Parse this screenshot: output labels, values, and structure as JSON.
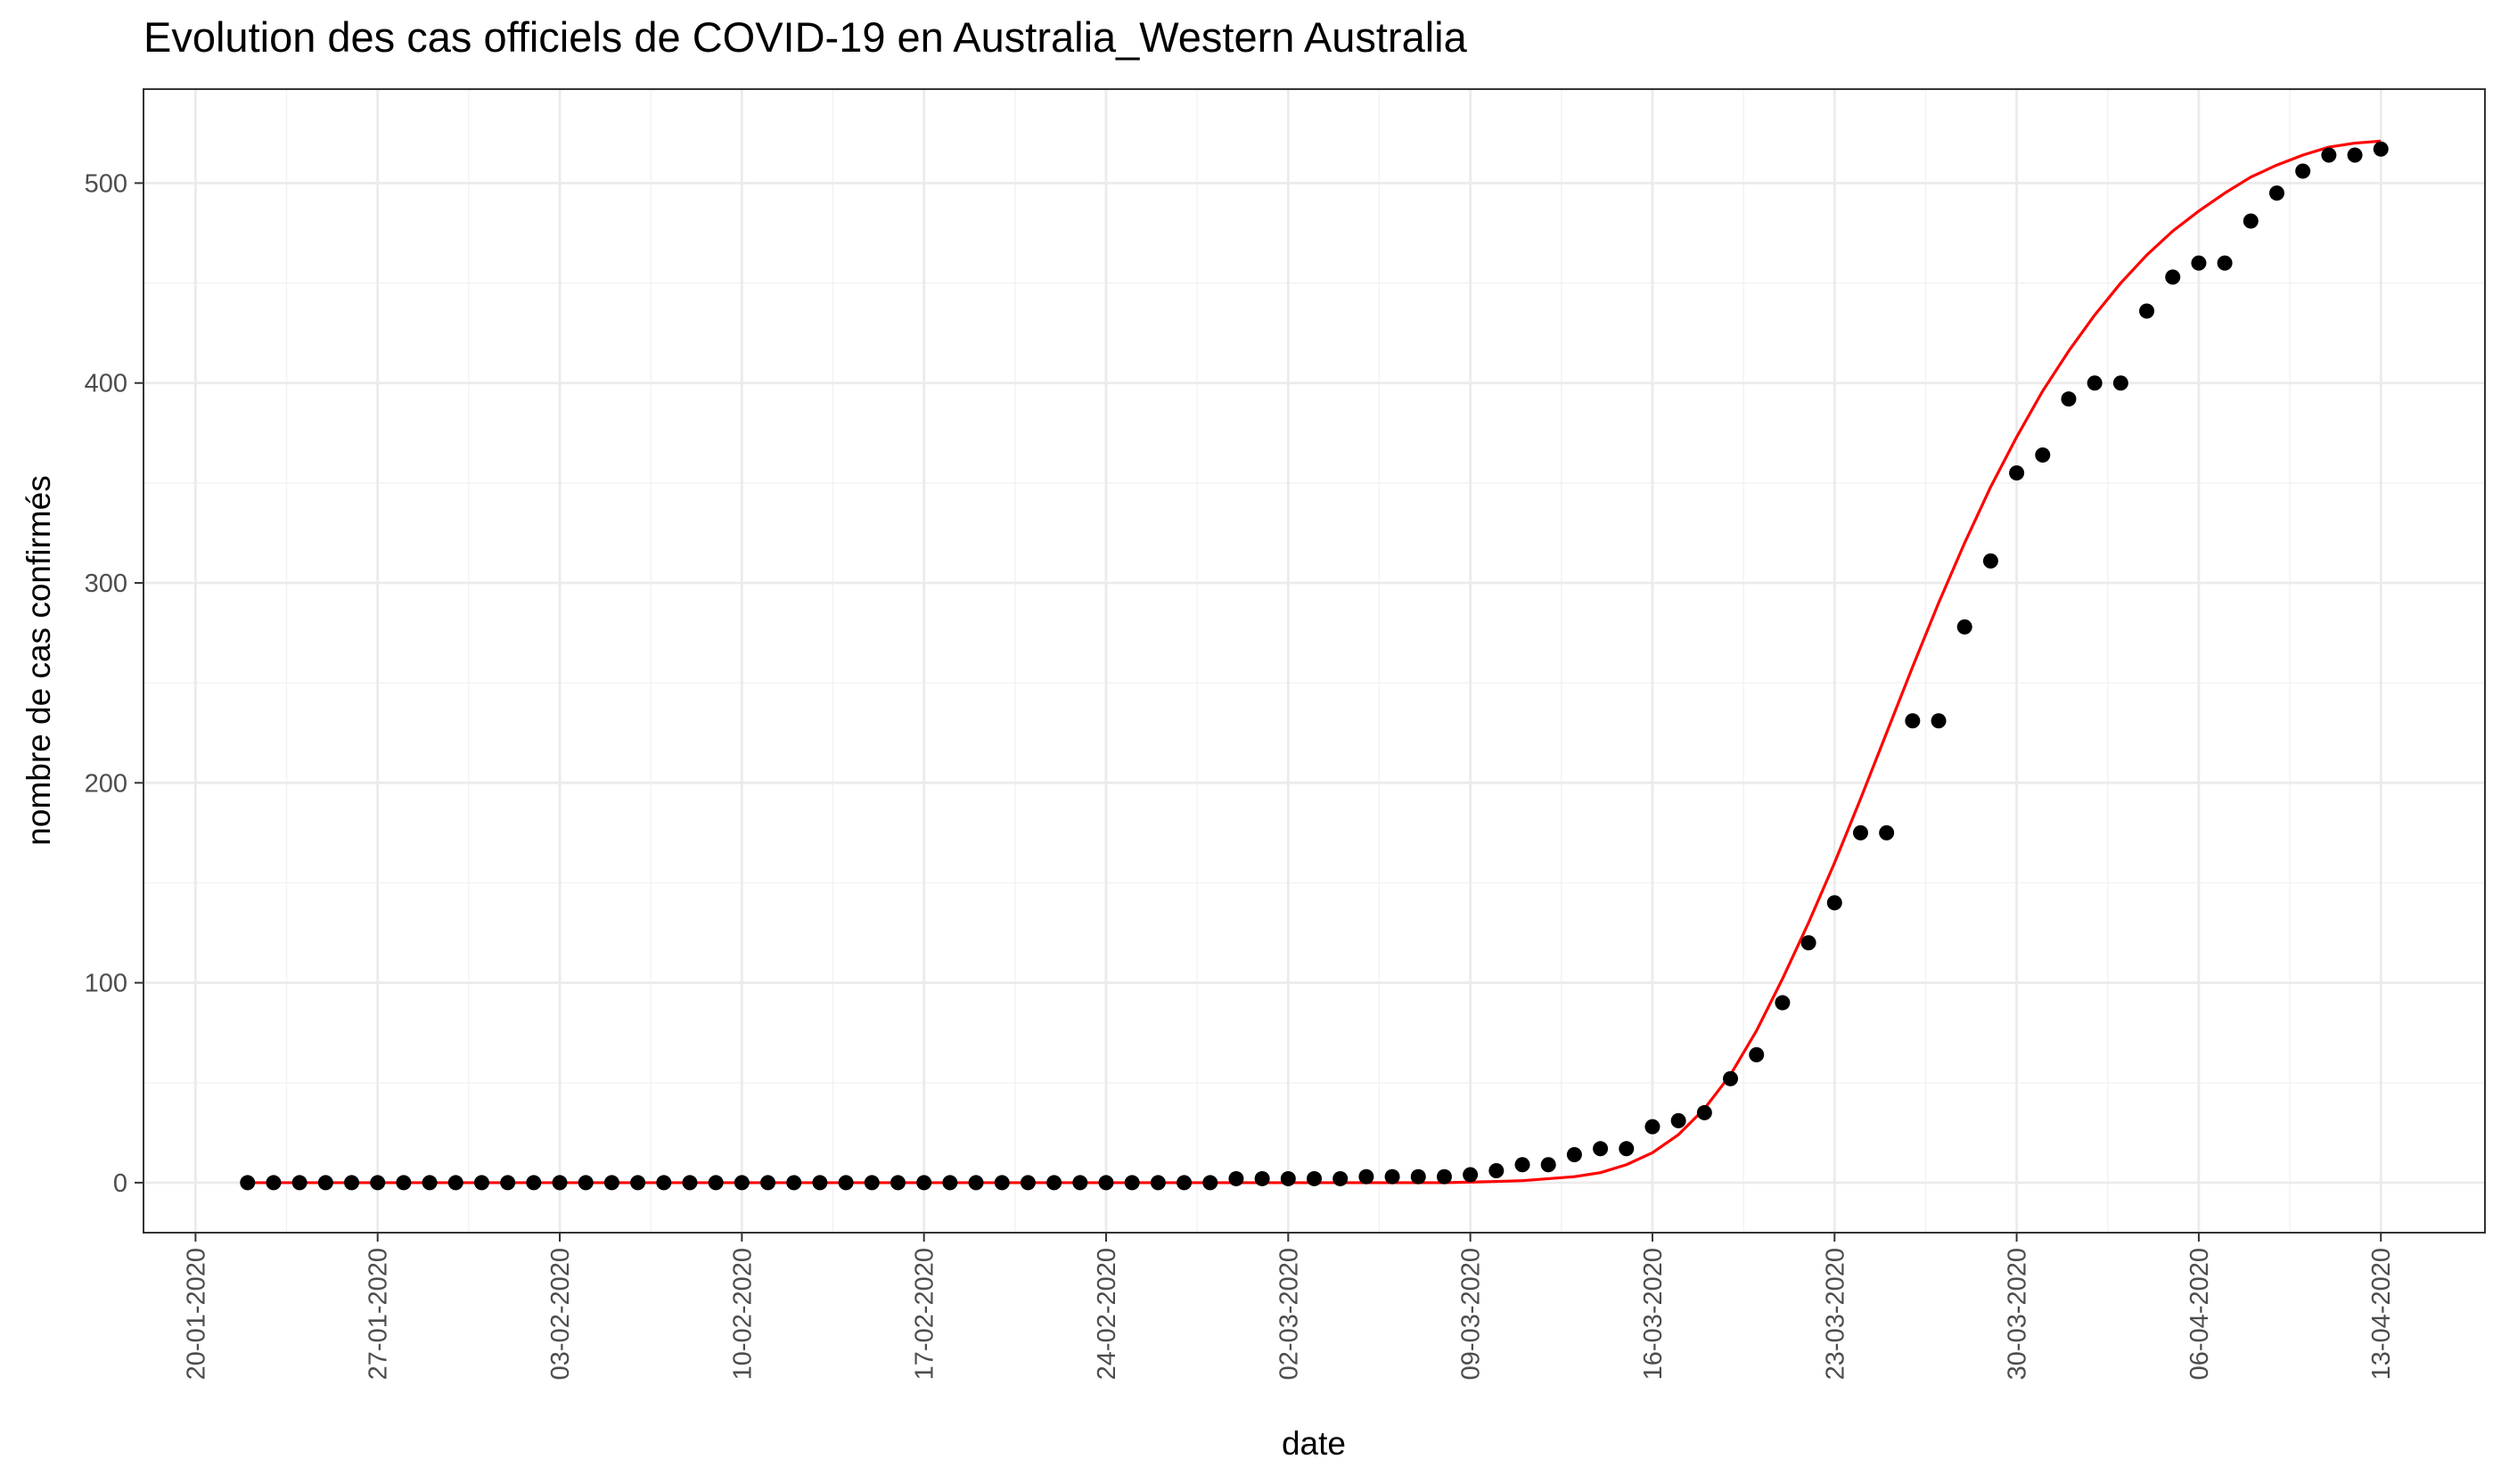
{
  "chart_data": {
    "type": "scatter",
    "title": "Evolution des cas officiels de COVID-19 en Australia_Western Australia",
    "xlabel": "date",
    "ylabel": "nombre de cas confirmés",
    "x_tick_labels": [
      "20-01-2020",
      "27-01-2020",
      "03-02-2020",
      "10-02-2020",
      "17-02-2020",
      "24-02-2020",
      "02-03-2020",
      "09-03-2020",
      "16-03-2020",
      "23-03-2020",
      "30-03-2020",
      "06-04-2020",
      "13-04-2020"
    ],
    "y_tick_labels": [
      "0",
      "100",
      "200",
      "300",
      "400",
      "500"
    ],
    "x_start_date": "2020-01-22",
    "x_end_date": "2020-04-13",
    "xlim": [
      "2020-01-18",
      "2020-04-17"
    ],
    "ylim": [
      -25,
      547
    ],
    "grid": true,
    "series": [
      {
        "kind": "points",
        "color": "#000000",
        "values": [
          0,
          0,
          0,
          0,
          0,
          0,
          0,
          0,
          0,
          0,
          0,
          0,
          0,
          0,
          0,
          0,
          0,
          0,
          0,
          0,
          0,
          0,
          0,
          0,
          0,
          0,
          0,
          0,
          0,
          0,
          0,
          0,
          0,
          0,
          0,
          0,
          0,
          0,
          2,
          2,
          2,
          2,
          2,
          3,
          3,
          3,
          3,
          4,
          6,
          9,
          9,
          14,
          17,
          17,
          28,
          31,
          35,
          52,
          64,
          90,
          120,
          140,
          175,
          175,
          231,
          231,
          278,
          311,
          355,
          364,
          392,
          400,
          400,
          436,
          453,
          460,
          460,
          481,
          495,
          506,
          514,
          514,
          517
        ]
      },
      {
        "kind": "fitted-curve",
        "color": "#ff0000",
        "values": [
          0,
          0,
          0,
          0,
          0,
          0,
          0,
          0,
          0,
          0,
          0,
          0,
          0,
          0,
          0,
          0,
          0,
          0,
          0,
          0,
          0,
          0,
          0,
          0,
          0,
          0,
          0,
          0,
          0,
          0,
          0,
          0,
          0,
          0,
          0,
          0,
          0,
          0,
          0,
          0,
          0,
          0,
          0,
          0,
          0,
          0,
          0,
          0.3,
          0.6,
          1,
          2,
          3,
          5,
          9,
          15,
          24,
          37,
          54,
          76,
          102,
          130,
          160,
          192,
          225,
          258,
          290,
          320,
          348,
          373,
          396,
          416,
          434,
          450,
          464,
          476,
          486,
          495,
          503,
          509,
          514,
          518,
          520,
          521
        ]
      }
    ]
  }
}
